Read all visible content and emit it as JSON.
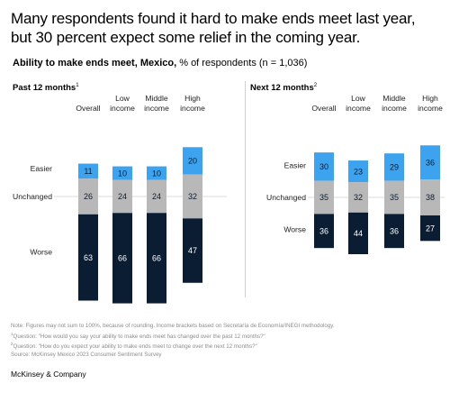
{
  "title": {
    "line1": "Many respondents found it hard to make ends meet last year,",
    "line2": "but 30 percent expect some relief in the coming year."
  },
  "subtitle": {
    "bold": "Ability to make ends meet, Mexico,",
    "rest": " % of respondents (n = 1,036)"
  },
  "panels": [
    {
      "heading": "Past 12 months",
      "footnote_mark": "1"
    },
    {
      "heading": "Next 12 months",
      "footnote_mark": "2"
    }
  ],
  "notes": {
    "line1": "Note: Figures may not sum to 100%, because of rounding. Income brackets based on Secretaría de Economía/INEGI methodology.",
    "line2_mark": "1",
    "line2": "Question: \"How would you say your ability to make ends meet has changed over the past 12 months?\"",
    "line3_mark": "2",
    "line3": "Question: \"How do you expect your ability to make ends meet to change over the next 12 months?\"",
    "line4": "Source: McKinsey Mexico 2023 Consumer Sentiment Survey"
  },
  "footer": "McKinsey & Company",
  "colors": {
    "easier": "#3ea3ee",
    "unchanged": "#b8b8b8",
    "worse": "#0b1d33",
    "label_dark": "#0b1d33",
    "label_light": "#ffffff",
    "rule": "#cfcfcf"
  },
  "chart_data": [
    {
      "type": "bar",
      "stacked": true,
      "title": "Past 12 months",
      "categories": [
        "Overall",
        "Low income",
        "Middle income",
        "High income"
      ],
      "row_labels": [
        "Easier",
        "Unchanged",
        "Worse"
      ],
      "series": [
        {
          "name": "Easier",
          "values": [
            11,
            10,
            10,
            20
          ]
        },
        {
          "name": "Unchanged",
          "values": [
            26,
            24,
            24,
            32
          ]
        },
        {
          "name": "Worse",
          "values": [
            63,
            66,
            66,
            47
          ]
        }
      ]
    },
    {
      "type": "bar",
      "stacked": true,
      "title": "Next 12 months",
      "categories": [
        "Overall",
        "Low income",
        "Middle income",
        "High income"
      ],
      "row_labels": [
        "Easier",
        "Unchanged",
        "Worse"
      ],
      "series": [
        {
          "name": "Easier",
          "values": [
            30,
            23,
            29,
            36
          ]
        },
        {
          "name": "Unchanged",
          "values": [
            35,
            32,
            35,
            38
          ]
        },
        {
          "name": "Worse",
          "values": [
            36,
            44,
            36,
            27
          ]
        }
      ]
    }
  ]
}
